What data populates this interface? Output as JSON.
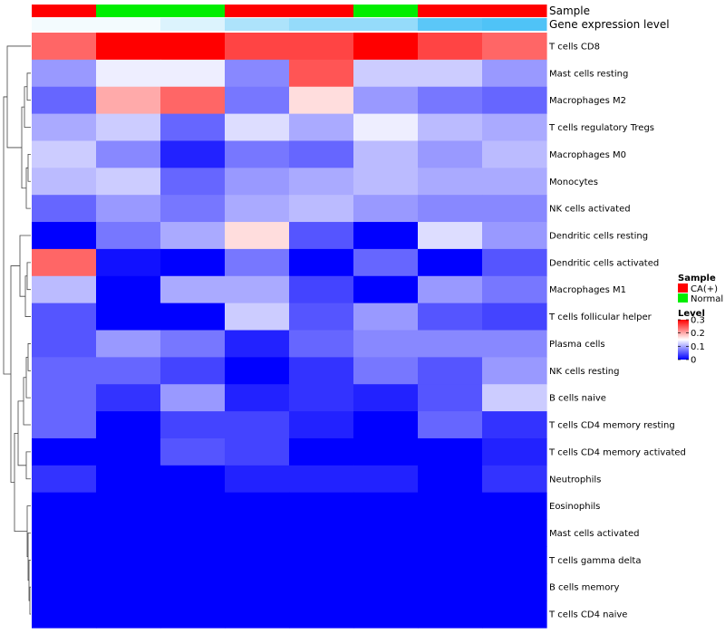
{
  "chart_data": {
    "type": "heatmap",
    "color_scale": {
      "low": "#0000FF",
      "mid": "#FFFFFF",
      "high": "#FF0000",
      "min": 0,
      "mid_value": 0.15,
      "max": 0.3
    },
    "annotation_tracks": [
      {
        "name": "Sample",
        "values": [
          "CA(+)",
          "Normal",
          "Normal",
          "CA(+)",
          "CA(+)",
          "Normal",
          "CA(+)",
          "CA(+)"
        ]
      },
      {
        "name": "Gene expression level",
        "values": [
          0.02,
          0.02,
          0.06,
          0.14,
          0.18,
          0.18,
          0.28,
          0.3
        ]
      }
    ],
    "rows": [
      "T cells CD8",
      "Mast cells resting",
      "Macrophages M2",
      "T cells regulatory  Tregs",
      "Macrophages M0",
      "Monocytes",
      "NK cells activated",
      "Dendritic cells resting",
      "Dendritic cells activated",
      "Macrophages M1",
      "T cells follicular helper",
      "Plasma cells",
      "NK cells resting",
      "B cells naive",
      "T cells CD4 memory resting",
      "T cells CD4 memory activated",
      "Neutrophils",
      "Eosinophils",
      "Mast cells activated",
      "T cells gamma delta",
      "B cells memory",
      "T cells CD4 naive"
    ],
    "values": [
      [
        0.24,
        0.3,
        0.3,
        0.26,
        0.26,
        0.3,
        0.26,
        0.24
      ],
      [
        0.09,
        0.14,
        0.14,
        0.08,
        0.25,
        0.12,
        0.12,
        0.09
      ],
      [
        0.06,
        0.2,
        0.24,
        0.07,
        0.17,
        0.09,
        0.07,
        0.06
      ],
      [
        0.1,
        0.12,
        0.06,
        0.13,
        0.1,
        0.14,
        0.11,
        0.1
      ],
      [
        0.12,
        0.08,
        0.02,
        0.07,
        0.06,
        0.11,
        0.09,
        0.11
      ],
      [
        0.11,
        0.12,
        0.06,
        0.09,
        0.1,
        0.11,
        0.1,
        0.1
      ],
      [
        0.06,
        0.09,
        0.07,
        0.1,
        0.11,
        0.09,
        0.08,
        0.08
      ],
      [
        0.0,
        0.07,
        0.1,
        0.17,
        0.05,
        0.0,
        0.13,
        0.09
      ],
      [
        0.24,
        0.01,
        0.0,
        0.07,
        0.0,
        0.06,
        0.0,
        0.05
      ],
      [
        0.11,
        0.0,
        0.1,
        0.1,
        0.04,
        0.0,
        0.09,
        0.07
      ],
      [
        0.05,
        0.0,
        0.0,
        0.12,
        0.05,
        0.09,
        0.05,
        0.04
      ],
      [
        0.05,
        0.09,
        0.07,
        0.02,
        0.06,
        0.08,
        0.08,
        0.08
      ],
      [
        0.06,
        0.06,
        0.04,
        0.0,
        0.03,
        0.07,
        0.05,
        0.09
      ],
      [
        0.06,
        0.03,
        0.09,
        0.02,
        0.03,
        0.02,
        0.05,
        0.12
      ],
      [
        0.06,
        0.0,
        0.04,
        0.04,
        0.02,
        0.0,
        0.06,
        0.03
      ],
      [
        0.0,
        0.0,
        0.05,
        0.04,
        0.0,
        0.0,
        0.0,
        0.02
      ],
      [
        0.03,
        0.0,
        0.0,
        0.02,
        0.02,
        0.02,
        0.0,
        0.03
      ],
      [
        0.0,
        0.0,
        0.0,
        0.0,
        0.0,
        0.0,
        0.0,
        0.0
      ],
      [
        0.0,
        0.0,
        0.0,
        0.0,
        0.0,
        0.0,
        0.0,
        0.0
      ],
      [
        0.0,
        0.0,
        0.0,
        0.0,
        0.0,
        0.0,
        0.0,
        0.0
      ],
      [
        0.0,
        0.0,
        0.0,
        0.0,
        0.0,
        0.0,
        0.0,
        0.0
      ],
      [
        0.0,
        0.0,
        0.0,
        0.0,
        0.0,
        0.0,
        0.0,
        0.0
      ]
    ],
    "legend": {
      "sample_title": "Sample",
      "sample_items": [
        {
          "label": "CA(+)",
          "color": "#FF0000"
        },
        {
          "label": "Normal",
          "color": "#00EE00"
        }
      ],
      "level_title": "Level",
      "level_ticks": [
        "0.3",
        "0.2",
        "0.1",
        "0"
      ],
      "level_tick_values": [
        0.3,
        0.2,
        0.1,
        0
      ]
    }
  }
}
